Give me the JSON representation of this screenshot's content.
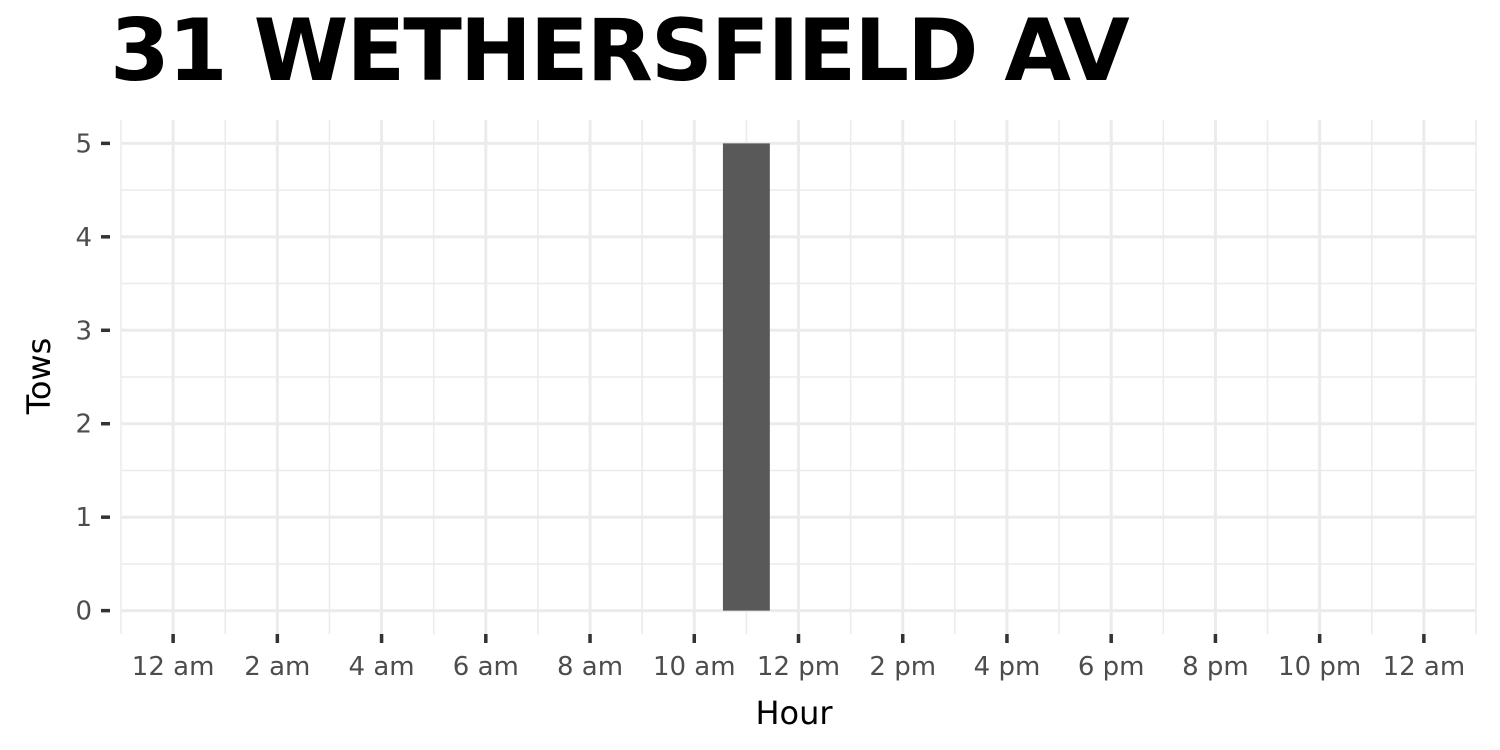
{
  "chart_data": {
    "type": "bar",
    "title": "31 WETHERSFIELD AV",
    "xlabel": "Hour",
    "ylabel": "Tows",
    "x_tick_labels": [
      "12 am",
      "2 am",
      "4 am",
      "6 am",
      "8 am",
      "10 am",
      "12 pm",
      "2 pm",
      "4 pm",
      "6 pm",
      "8 pm",
      "10 pm",
      "12 am"
    ],
    "x_tick_hours": [
      0,
      2,
      4,
      6,
      8,
      10,
      12,
      14,
      16,
      18,
      20,
      22,
      24
    ],
    "y_ticks": [
      0,
      1,
      2,
      3,
      4,
      5
    ],
    "xlim": [
      -1,
      25
    ],
    "ylim": [
      -0.25,
      5.25
    ],
    "x": [
      11
    ],
    "values": [
      5
    ],
    "bar_color": "#595959",
    "grid": true,
    "grid_color": "#ebebeb",
    "background": "#ffffff"
  }
}
